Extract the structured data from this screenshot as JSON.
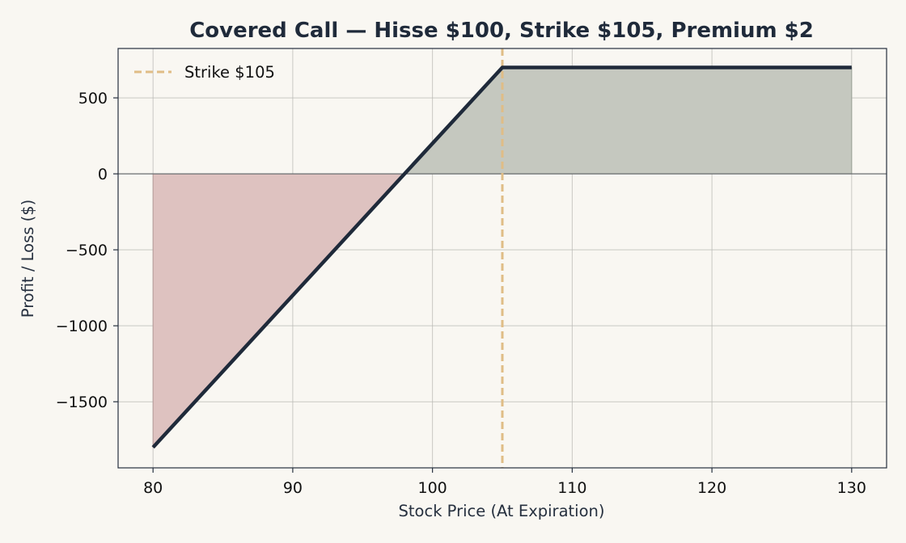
{
  "chart_data": {
    "type": "line",
    "title": "Covered Call — Hisse $100, Strike $105, Premium $2",
    "xlabel": "Stock Price (At Expiration)",
    "ylabel": "Profit / Loss ($)",
    "xlim": [
      77.5,
      132.5
    ],
    "ylim": [
      -1935,
      825
    ],
    "xticks": [
      80,
      90,
      100,
      110,
      120,
      130
    ],
    "yticks": [
      -1500,
      -1000,
      -500,
      0,
      500
    ],
    "ytick_labels": [
      "−1500",
      "−1000",
      "−500",
      "0",
      "500"
    ],
    "grid": true,
    "legend_position": "top-left",
    "series": [
      {
        "x": [
          80,
          98,
          105,
          130
        ],
        "y": [
          -1800,
          0,
          700,
          700
        ],
        "color": "#1f2a3a"
      }
    ],
    "fill_profit_color": "#c5c8bf",
    "fill_loss_color": "#dec2c0",
    "strike_line": {
      "x": 105,
      "label": "Strike $105",
      "color": "#e0bd86"
    }
  }
}
